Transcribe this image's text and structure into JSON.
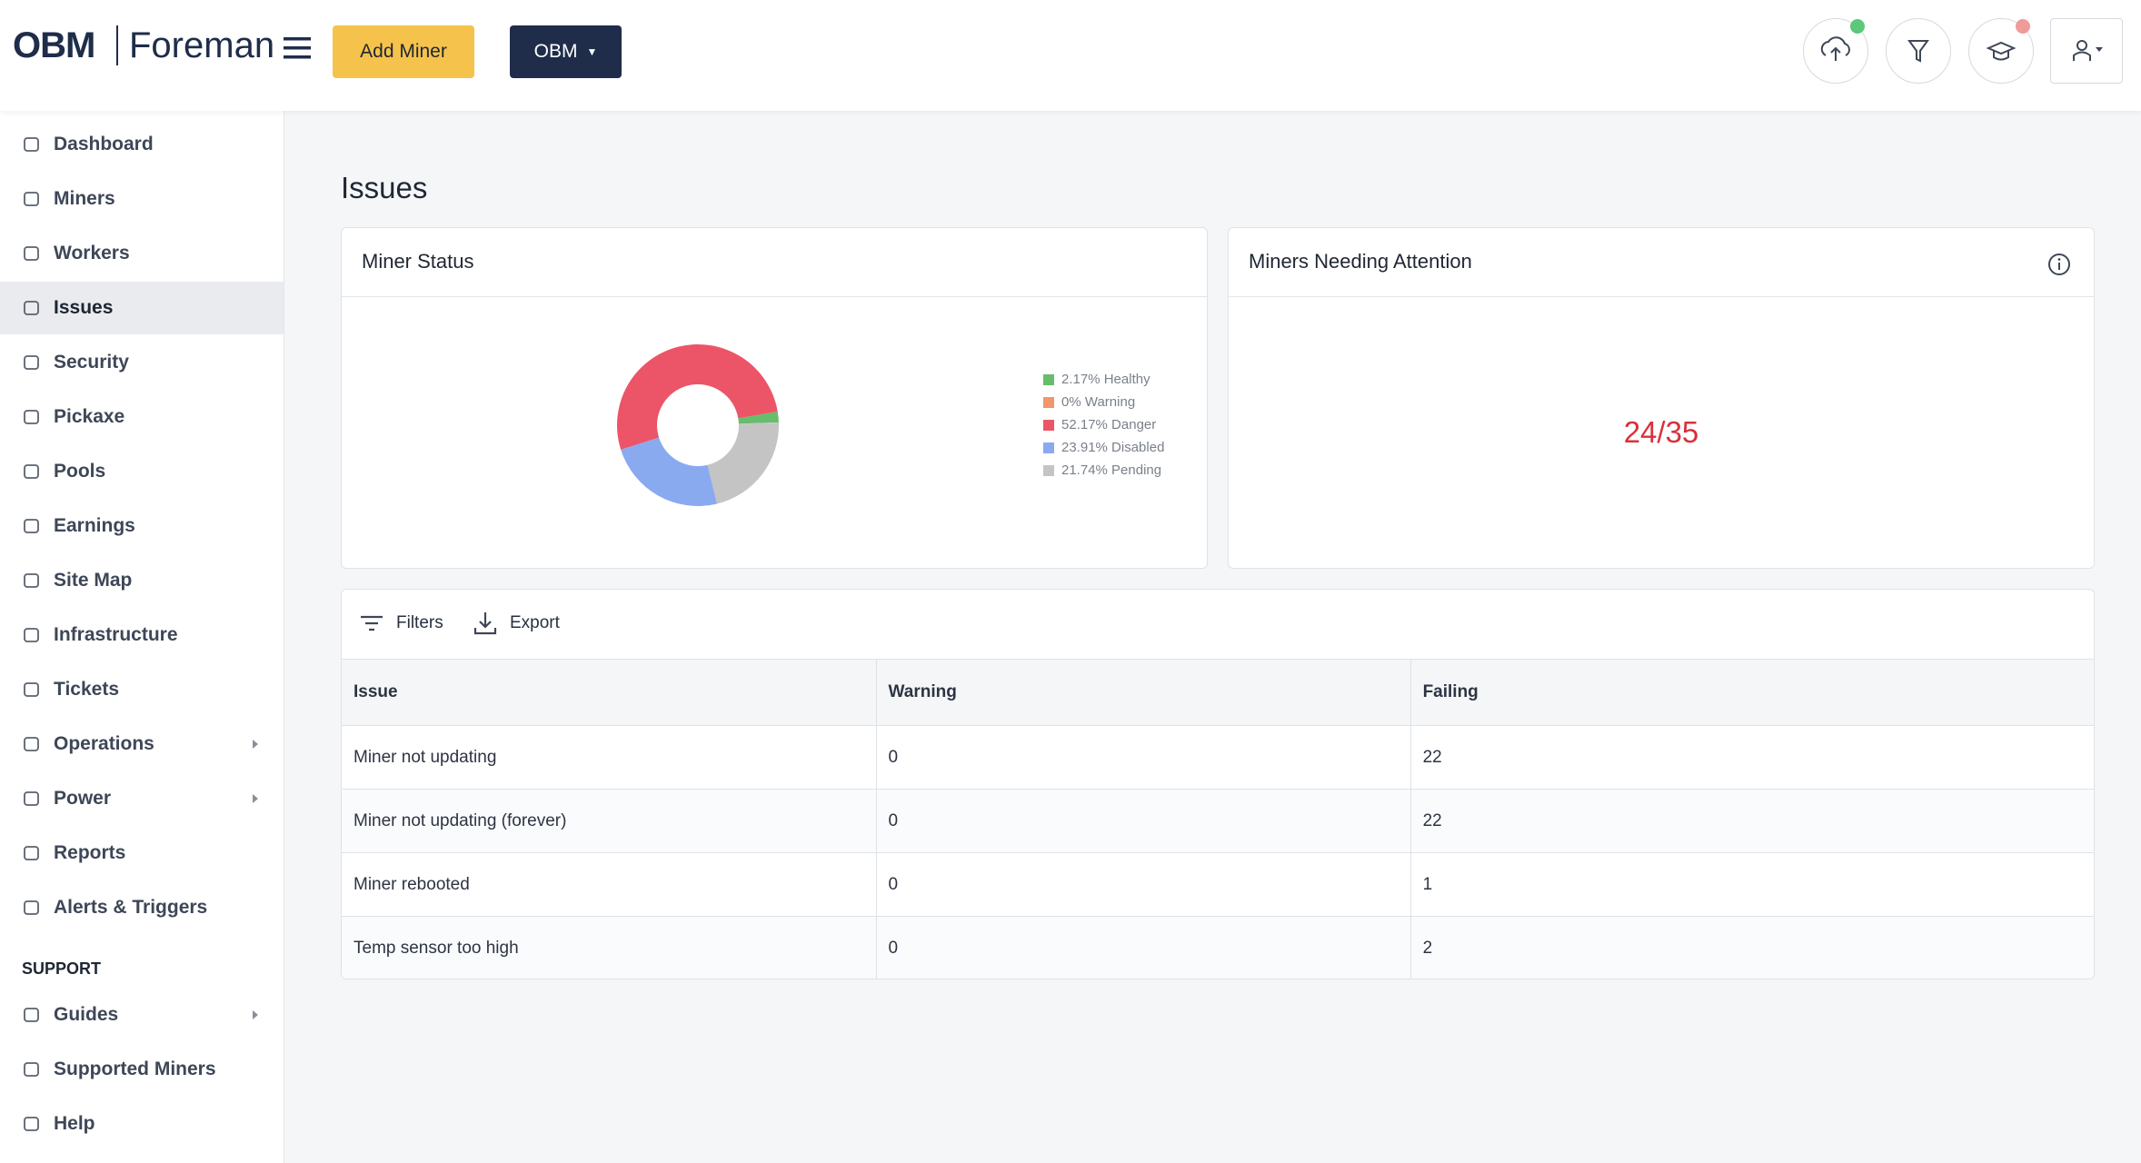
{
  "header": {
    "logo_brand": "OBM",
    "logo_product": "Foreman",
    "add_button": "Add Miner",
    "org_button": "OBM"
  },
  "sidebar": {
    "items": [
      "Dashboard",
      "Miners",
      "Workers",
      "Issues",
      "Security",
      "Pickaxe",
      "Pools",
      "Earnings",
      "Site Map",
      "Infrastructure",
      "Tickets",
      "Operations",
      "Power",
      "Reports",
      "Alerts & Triggers"
    ],
    "section": "SUPPORT",
    "support_items": [
      "Guides",
      "Supported Miners",
      "Help"
    ]
  },
  "page": {
    "title": "Issues"
  },
  "miner_status": {
    "title": "Miner Status",
    "chart": {
      "type": "pie",
      "categories": [
        "Healthy",
        "Warning",
        "Danger",
        "Disabled",
        "Pending"
      ],
      "values": [
        2.17,
        0,
        52.17,
        23.91,
        21.74
      ],
      "value_labels": [
        "2.17%",
        "0%",
        "52.17%",
        "23.91%",
        "21.74%"
      ],
      "colors": [
        "#66bd6b",
        "#f4956a",
        "#ec5567",
        "#8aaaf0",
        "#c4c4c4"
      ]
    }
  },
  "attention": {
    "title": "Miners Needing Attention",
    "value": "24/35"
  },
  "table": {
    "filters": "Filters",
    "export": "Export",
    "columns": [
      "Issue",
      "Warning",
      "Failing"
    ],
    "rows": [
      [
        "Miner not updating",
        0,
        22
      ],
      [
        "Miner not updating (forever)",
        0,
        22
      ],
      [
        "Miner rebooted",
        0,
        1
      ],
      [
        "Temp sensor too high",
        0,
        2
      ]
    ]
  }
}
